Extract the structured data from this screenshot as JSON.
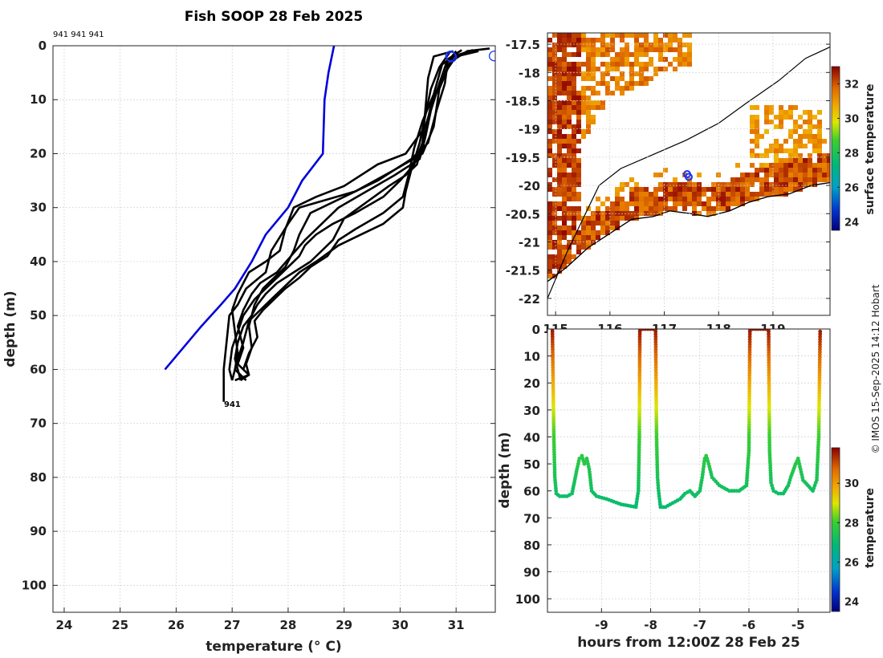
{
  "title": "Fish SOOP 28 Feb 2025",
  "platform_ids": "941 941 941",
  "profile_end_label": "941",
  "credit": "© IMOS 15-Sep-2025 14:12 Hobart",
  "colors": {
    "climatology": "#0000dd",
    "profile": "#000000",
    "ocean": "#ffffff",
    "coast": "#000000",
    "marker": "#1a33ff"
  },
  "chart_data": [
    {
      "id": "profile",
      "type": "line",
      "title": "Fish SOOP 28 Feb 2025",
      "xlabel": "temperature (° C)",
      "ylabel": "depth (m)",
      "xlim": [
        23.8,
        31.7
      ],
      "ylim": [
        105,
        0
      ],
      "xticks": [
        24,
        25,
        26,
        27,
        28,
        29,
        30,
        31
      ],
      "yticks": [
        0,
        10,
        20,
        30,
        40,
        50,
        60,
        70,
        80,
        90,
        100
      ],
      "grid": true,
      "climatology": {
        "name": "climatology",
        "points": [
          [
            28.82,
            0
          ],
          [
            28.72,
            5
          ],
          [
            28.65,
            10
          ],
          [
            28.62,
            20
          ],
          [
            28.25,
            25
          ],
          [
            28.0,
            30
          ],
          [
            27.6,
            35
          ],
          [
            27.35,
            40
          ],
          [
            27.05,
            45
          ],
          [
            26.8,
            48
          ],
          [
            26.45,
            52
          ],
          [
            25.8,
            60
          ]
        ]
      },
      "series": [
        {
          "name": "p1",
          "points": [
            [
              31.6,
              0.5
            ],
            [
              31.2,
              1
            ],
            [
              30.9,
              3
            ],
            [
              30.7,
              8
            ],
            [
              30.6,
              15
            ],
            [
              30.4,
              20
            ],
            [
              29.9,
              23
            ],
            [
              29.2,
              27
            ],
            [
              28.2,
              30
            ],
            [
              28.0,
              33
            ],
            [
              27.7,
              38
            ],
            [
              27.6,
              42
            ],
            [
              27.25,
              45
            ],
            [
              27.1,
              48
            ],
            [
              26.95,
              50
            ],
            [
              26.9,
              55
            ],
            [
              26.85,
              60
            ],
            [
              26.85,
              66
            ]
          ]
        },
        {
          "name": "p2",
          "points": [
            [
              31.4,
              1
            ],
            [
              31.0,
              2
            ],
            [
              30.8,
              5
            ],
            [
              30.6,
              10
            ],
            [
              30.45,
              15
            ],
            [
              30.1,
              20
            ],
            [
              29.6,
              22
            ],
            [
              29.0,
              26
            ],
            [
              28.5,
              28
            ],
            [
              28.1,
              30
            ],
            [
              27.95,
              34
            ],
            [
              27.85,
              38
            ],
            [
              27.6,
              40
            ],
            [
              27.3,
              42
            ],
            [
              27.1,
              46
            ],
            [
              27.0,
              49
            ],
            [
              27.05,
              53
            ],
            [
              27.1,
              57
            ],
            [
              27.05,
              60
            ],
            [
              27.25,
              62
            ]
          ]
        },
        {
          "name": "p3",
          "points": [
            [
              31.0,
              1
            ],
            [
              30.85,
              3
            ],
            [
              30.8,
              7
            ],
            [
              30.65,
              12
            ],
            [
              30.5,
              18
            ],
            [
              30.2,
              21
            ],
            [
              29.6,
              25
            ],
            [
              29.0,
              28
            ],
            [
              28.4,
              31
            ],
            [
              28.2,
              35
            ],
            [
              28.1,
              38
            ],
            [
              27.95,
              41
            ],
            [
              27.75,
              43
            ],
            [
              27.55,
              45
            ],
            [
              27.4,
              48
            ],
            [
              27.3,
              52
            ],
            [
              27.35,
              56
            ],
            [
              27.25,
              59
            ],
            [
              27.3,
              61
            ],
            [
              27.15,
              62
            ]
          ]
        },
        {
          "name": "p4",
          "points": [
            [
              31.3,
              0.8
            ],
            [
              30.95,
              2
            ],
            [
              30.75,
              6
            ],
            [
              30.55,
              11
            ],
            [
              30.45,
              16
            ],
            [
              30.3,
              22
            ],
            [
              30.1,
              24
            ],
            [
              29.8,
              26
            ],
            [
              29.4,
              29
            ],
            [
              29.0,
              32
            ],
            [
              28.8,
              36
            ],
            [
              28.6,
              38
            ],
            [
              28.4,
              40
            ],
            [
              28.1,
              42
            ],
            [
              27.8,
              44
            ],
            [
              27.6,
              46
            ],
            [
              27.45,
              48
            ],
            [
              27.35,
              50
            ],
            [
              27.2,
              52
            ],
            [
              27.1,
              55
            ],
            [
              27.05,
              58
            ],
            [
              27.15,
              62
            ]
          ]
        },
        {
          "name": "p5",
          "points": [
            [
              31.0,
              1.5
            ],
            [
              30.75,
              3.5
            ],
            [
              30.6,
              9
            ],
            [
              30.4,
              14
            ],
            [
              30.25,
              19
            ],
            [
              30.15,
              24
            ],
            [
              30.05,
              28
            ],
            [
              29.7,
              31
            ],
            [
              29.2,
              34
            ],
            [
              28.9,
              36
            ],
            [
              28.7,
              39
            ],
            [
              28.4,
              41
            ],
            [
              28.2,
              43
            ],
            [
              27.95,
              45
            ],
            [
              27.75,
              47
            ],
            [
              27.55,
              49
            ],
            [
              27.4,
              51
            ],
            [
              27.45,
              54
            ],
            [
              27.3,
              57
            ],
            [
              27.2,
              60
            ]
          ]
        },
        {
          "name": "p6",
          "points": [
            [
              30.9,
              1
            ],
            [
              30.7,
              4
            ],
            [
              30.55,
              8
            ],
            [
              30.45,
              13
            ],
            [
              30.35,
              18
            ],
            [
              30.2,
              23
            ],
            [
              30.1,
              27
            ],
            [
              30.05,
              30
            ],
            [
              29.7,
              33
            ],
            [
              29.3,
              35
            ],
            [
              28.9,
              37
            ],
            [
              28.5,
              40
            ],
            [
              28.2,
              42
            ],
            [
              27.9,
              45
            ],
            [
              27.7,
              47
            ],
            [
              27.5,
              49
            ],
            [
              27.3,
              51
            ],
            [
              27.2,
              55
            ],
            [
              27.1,
              58
            ],
            [
              27.0,
              62
            ]
          ]
        },
        {
          "name": "p7",
          "points": [
            [
              30.95,
              1
            ],
            [
              30.6,
              2
            ],
            [
              30.5,
              6
            ],
            [
              30.45,
              12
            ],
            [
              30.4,
              18
            ],
            [
              30.25,
              22
            ],
            [
              30.0,
              25
            ],
            [
              29.7,
              28
            ],
            [
              29.2,
              31
            ],
            [
              28.8,
              33
            ],
            [
              28.5,
              35
            ],
            [
              28.3,
              37
            ],
            [
              28.2,
              39
            ],
            [
              27.9,
              42
            ],
            [
              27.6,
              45
            ],
            [
              27.4,
              47
            ],
            [
              27.2,
              50
            ],
            [
              27.1,
              53
            ],
            [
              27.0,
              56
            ],
            [
              26.95,
              60
            ],
            [
              27.0,
              62
            ]
          ]
        },
        {
          "name": "p8",
          "points": [
            [
              31.1,
              0.8
            ],
            [
              30.85,
              2.5
            ],
            [
              30.7,
              7
            ],
            [
              30.55,
              12
            ],
            [
              30.45,
              17
            ],
            [
              30.35,
              21
            ],
            [
              29.9,
              24
            ],
            [
              29.4,
              27
            ],
            [
              28.9,
              30
            ],
            [
              28.6,
              33
            ],
            [
              28.3,
              36
            ],
            [
              28.05,
              39
            ],
            [
              27.8,
              42
            ],
            [
              27.5,
              44
            ],
            [
              27.35,
              46
            ],
            [
              27.2,
              49
            ],
            [
              27.1,
              52
            ],
            [
              27.2,
              56
            ],
            [
              27.1,
              59
            ],
            [
              27.3,
              61
            ],
            [
              27.05,
              62
            ]
          ]
        }
      ],
      "surface_markers": [
        [
          30.9,
          1
        ],
        [
          30.92,
          1.2
        ],
        [
          31.68,
          1
        ]
      ]
    },
    {
      "id": "map",
      "type": "heatmap",
      "colorbar_label": "surface temperature",
      "colorbar_ticks": [
        24,
        26,
        28,
        30,
        32
      ],
      "clim": [
        23.5,
        33
      ],
      "xlim": [
        114.85,
        120.05
      ],
      "ylim": [
        -22.3,
        -17.3
      ],
      "xticks": [
        115,
        116,
        117,
        118,
        119
      ],
      "yticks": [
        -17.5,
        -18,
        -18.5,
        -19,
        -19.5,
        -20,
        -20.5,
        -21,
        -21.5,
        -22
      ],
      "ytick_labels": [
        "-17.5",
        "-18",
        "-18.5",
        "-19",
        "-19.5",
        "-20",
        "-20.5",
        "-21",
        "-21.5",
        "-22"
      ],
      "grid": true,
      "coastline": [
        [
          114.85,
          -21.7
        ],
        [
          115.2,
          -21.45
        ],
        [
          115.6,
          -21.1
        ],
        [
          116.0,
          -20.85
        ],
        [
          116.4,
          -20.6
        ],
        [
          116.8,
          -20.55
        ],
        [
          117.1,
          -20.45
        ],
        [
          117.5,
          -20.5
        ],
        [
          117.8,
          -20.55
        ],
        [
          118.2,
          -20.45
        ],
        [
          118.55,
          -20.3
        ],
        [
          118.9,
          -20.2
        ],
        [
          119.3,
          -20.15
        ],
        [
          119.7,
          -20.0
        ],
        [
          120.05,
          -19.95
        ]
      ],
      "isobath": [
        [
          114.85,
          -22.0
        ],
        [
          115.2,
          -21.2
        ],
        [
          115.5,
          -20.6
        ],
        [
          115.8,
          -20.0
        ],
        [
          116.2,
          -19.7
        ],
        [
          116.8,
          -19.45
        ],
        [
          117.4,
          -19.2
        ],
        [
          118.0,
          -18.9
        ],
        [
          118.5,
          -18.55
        ],
        [
          119.1,
          -18.15
        ],
        [
          119.6,
          -17.75
        ],
        [
          120.05,
          -17.55
        ]
      ],
      "markers": [
        [
          117.42,
          -19.8
        ],
        [
          117.45,
          -19.85
        ]
      ]
    },
    {
      "id": "section",
      "type": "scatter",
      "xlabel": "hours from 12:00Z 28 Feb 25",
      "ylabel": "depth (m)",
      "colorbar_label": "temperature",
      "colorbar_ticks": [
        24,
        26,
        28,
        30
      ],
      "clim": [
        23.5,
        31.8
      ],
      "xlim": [
        -10.1,
        -4.35
      ],
      "ylim": [
        105,
        0
      ],
      "xticks": [
        -9,
        -8,
        -7,
        -6,
        -5
      ],
      "yticks": [
        0,
        10,
        20,
        30,
        40,
        50,
        60,
        70,
        80,
        90,
        100
      ],
      "grid": true,
      "track": [
        [
          -10.0,
          0
        ],
        [
          -9.97,
          40
        ],
        [
          -9.95,
          55
        ],
        [
          -9.92,
          61
        ],
        [
          -9.85,
          62
        ],
        [
          -9.7,
          62
        ],
        [
          -9.6,
          61
        ],
        [
          -9.5,
          52
        ],
        [
          -9.45,
          48
        ],
        [
          -9.4,
          47
        ],
        [
          -9.35,
          50
        ],
        [
          -9.3,
          48
        ],
        [
          -9.25,
          52
        ],
        [
          -9.2,
          60
        ],
        [
          -9.1,
          62
        ],
        [
          -8.9,
          63
        ],
        [
          -8.6,
          65
        ],
        [
          -8.3,
          66
        ],
        [
          -8.25,
          60
        ],
        [
          -8.23,
          40
        ],
        [
          -8.22,
          0
        ],
        [
          -7.9,
          0
        ],
        [
          -7.88,
          40
        ],
        [
          -7.86,
          55
        ],
        [
          -7.84,
          60
        ],
        [
          -7.8,
          66
        ],
        [
          -7.7,
          66
        ],
        [
          -7.5,
          64
        ],
        [
          -7.4,
          63
        ],
        [
          -7.3,
          61
        ],
        [
          -7.2,
          60
        ],
        [
          -7.1,
          62
        ],
        [
          -7.0,
          60
        ],
        [
          -6.95,
          55
        ],
        [
          -6.9,
          48
        ],
        [
          -6.87,
          47
        ],
        [
          -6.82,
          50
        ],
        [
          -6.75,
          55
        ],
        [
          -6.6,
          58
        ],
        [
          -6.5,
          59
        ],
        [
          -6.4,
          60
        ],
        [
          -6.2,
          60
        ],
        [
          -6.05,
          58
        ],
        [
          -6.0,
          45
        ],
        [
          -5.98,
          0
        ],
        [
          -5.6,
          0
        ],
        [
          -5.58,
          45
        ],
        [
          -5.55,
          57
        ],
        [
          -5.5,
          60
        ],
        [
          -5.4,
          61
        ],
        [
          -5.3,
          61
        ],
        [
          -5.2,
          58
        ],
        [
          -5.15,
          55
        ],
        [
          -5.05,
          50
        ],
        [
          -5.0,
          48
        ],
        [
          -4.95,
          52
        ],
        [
          -4.9,
          56
        ],
        [
          -4.8,
          58
        ],
        [
          -4.7,
          60
        ],
        [
          -4.62,
          56
        ],
        [
          -4.58,
          40
        ],
        [
          -4.55,
          0
        ]
      ]
    }
  ]
}
